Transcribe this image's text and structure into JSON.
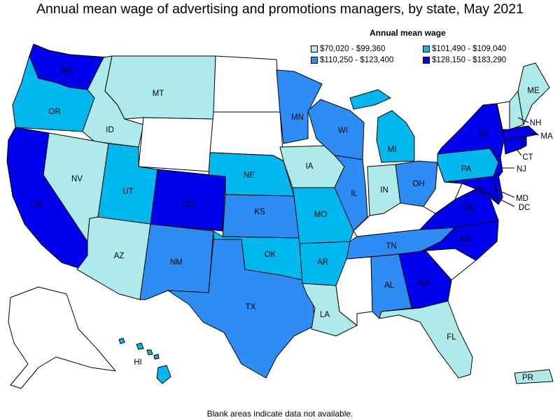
{
  "title": "Annual mean wage of advertising and promotions managers, by state, May 2021",
  "legend": {
    "title": "Annual mean wage",
    "bins": [
      {
        "label": "$70,020 - $99,360",
        "color": "#aeeaea"
      },
      {
        "label": "$101,490 - $109,040",
        "color": "#00b8ee"
      },
      {
        "label": "$110,250 - $123,400",
        "color": "#2e8cf5"
      },
      {
        "label": "$128,150 - $183,290",
        "color": "#0000ee"
      }
    ]
  },
  "footnote": "Blank areas indicate data not available.",
  "states": {
    "WA": 3,
    "OR": 1,
    "CA": 3,
    "ID": 0,
    "NV": 0,
    "MT": 0,
    "UT": 1,
    "AZ": 0,
    "CO": 3,
    "NM": 2,
    "ND": null,
    "SD": null,
    "WY": null,
    "NE": 1,
    "KS": 2,
    "OK": 1,
    "TX": 2,
    "MN": 2,
    "IA": 0,
    "MO": 1,
    "AR": 1,
    "LA": 0,
    "WI": 2,
    "IL": 2,
    "MI": 1,
    "IN": 0,
    "OH": 2,
    "KY": null,
    "TN": 2,
    "MS": null,
    "AL": 2,
    "GA": 3,
    "FL": 0,
    "SC": null,
    "NC": 3,
    "VA": 3,
    "WV": null,
    "PA": 1,
    "NY": 3,
    "ME": 0,
    "NH": 0,
    "VT": null,
    "MA": 3,
    "CT": 3,
    "NJ": 3,
    "MD": 3,
    "DE": 3,
    "DC": 3,
    "RI": 3,
    "AK": null,
    "HI": 1,
    "PR": 0
  },
  "labels": {
    "WA": "WA",
    "OR": "OR",
    "CA": "CA",
    "ID": "ID",
    "NV": "NV",
    "MT": "MT",
    "UT": "UT",
    "AZ": "AZ",
    "CO": "CO",
    "NM": "NM",
    "NE": "NE",
    "KS": "KS",
    "OK": "OK",
    "TX": "TX",
    "MN": "MN",
    "IA": "IA",
    "MO": "MO",
    "AR": "AR",
    "LA": "LA",
    "WI": "WI",
    "IL": "IL",
    "MI": "MI",
    "IN": "IN",
    "OH": "OH",
    "TN": "TN",
    "AL": "AL",
    "GA": "GA",
    "FL": "FL",
    "NC": "NC",
    "VA": "VA",
    "PA": "PA",
    "NY": "NY",
    "ME": "ME",
    "NH": "NH",
    "MA": "MA",
    "CT": "CT",
    "NJ": "NJ",
    "MD": "MD",
    "DC": "DC",
    "HI": "HI",
    "PR": "PR"
  }
}
